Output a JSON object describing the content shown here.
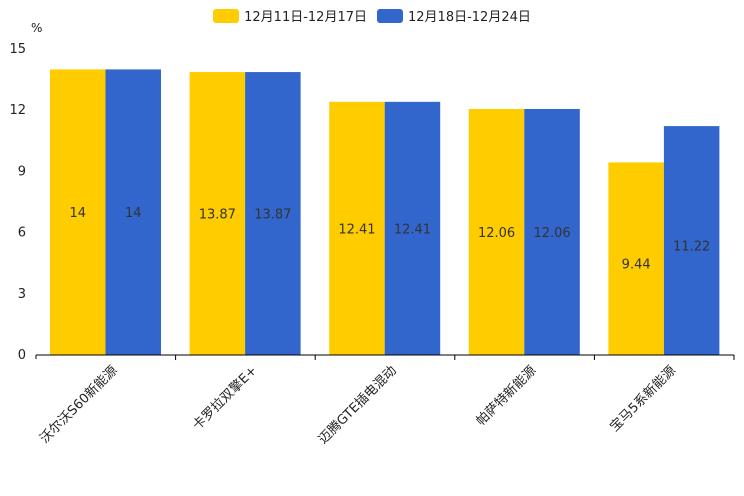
{
  "chart_data": {
    "type": "bar",
    "unit_label": "%",
    "categories": [
      "沃尔沃S60新能源",
      "卡罗拉双擎E+",
      "迈腾GTE插电混动",
      "帕萨特新能源",
      "宝马5系新能源"
    ],
    "series": [
      {
        "name": "12月11日-12月17日",
        "color": "#ffcc00",
        "values": [
          14,
          13.87,
          12.41,
          12.06,
          9.44
        ],
        "labels": [
          "14",
          "13.87",
          "12.41",
          "12.06",
          "9.44"
        ]
      },
      {
        "name": "12月18日-12月24日",
        "color": "#3366cc",
        "values": [
          14,
          13.87,
          12.41,
          12.06,
          11.22
        ],
        "labels": [
          "14",
          "13.87",
          "12.41",
          "12.06",
          "11.22"
        ]
      }
    ],
    "ylim": [
      0,
      15
    ],
    "yticks": [
      0,
      3,
      6,
      9,
      12,
      15
    ],
    "legend_position": "top-center"
  }
}
